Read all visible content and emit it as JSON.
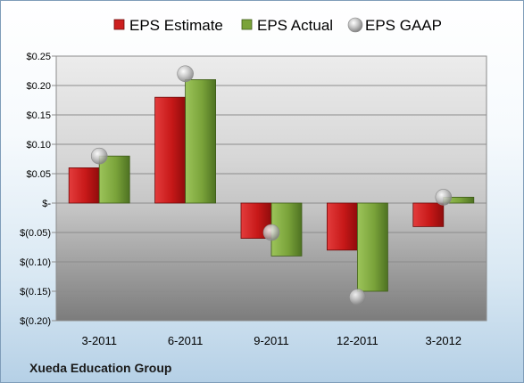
{
  "chart_data": {
    "type": "bar",
    "company": "Xueda Education Group",
    "categories": [
      "3-2011",
      "6-2011",
      "9-2011",
      "12-2011",
      "3-2012"
    ],
    "series": [
      {
        "name": "EPS Estimate",
        "kind": "bar",
        "color": "#cc1f1f",
        "values": [
          0.06,
          0.18,
          -0.06,
          -0.08,
          -0.04
        ]
      },
      {
        "name": "EPS Actual",
        "kind": "bar",
        "color": "#7aa33a",
        "values": [
          0.08,
          0.21,
          -0.09,
          -0.15,
          0.01
        ]
      },
      {
        "name": "EPS GAAP",
        "kind": "point",
        "color": "#a9a9a9",
        "values": [
          0.08,
          0.22,
          -0.05,
          -0.16,
          0.01
        ]
      }
    ],
    "ylim": [
      -0.2,
      0.25
    ],
    "yticks": [
      0.25,
      0.2,
      0.15,
      0.1,
      0.05,
      0,
      -0.05,
      -0.1,
      -0.15,
      -0.2
    ],
    "ytick_labels": [
      "$0.25",
      "$0.20",
      "$0.15",
      "$0.10",
      "$0.05",
      "$-",
      "$(0.05)",
      "$(0.10)",
      "$(0.15)",
      "$(0.20)"
    ],
    "grid": true,
    "legend_position": "top"
  }
}
